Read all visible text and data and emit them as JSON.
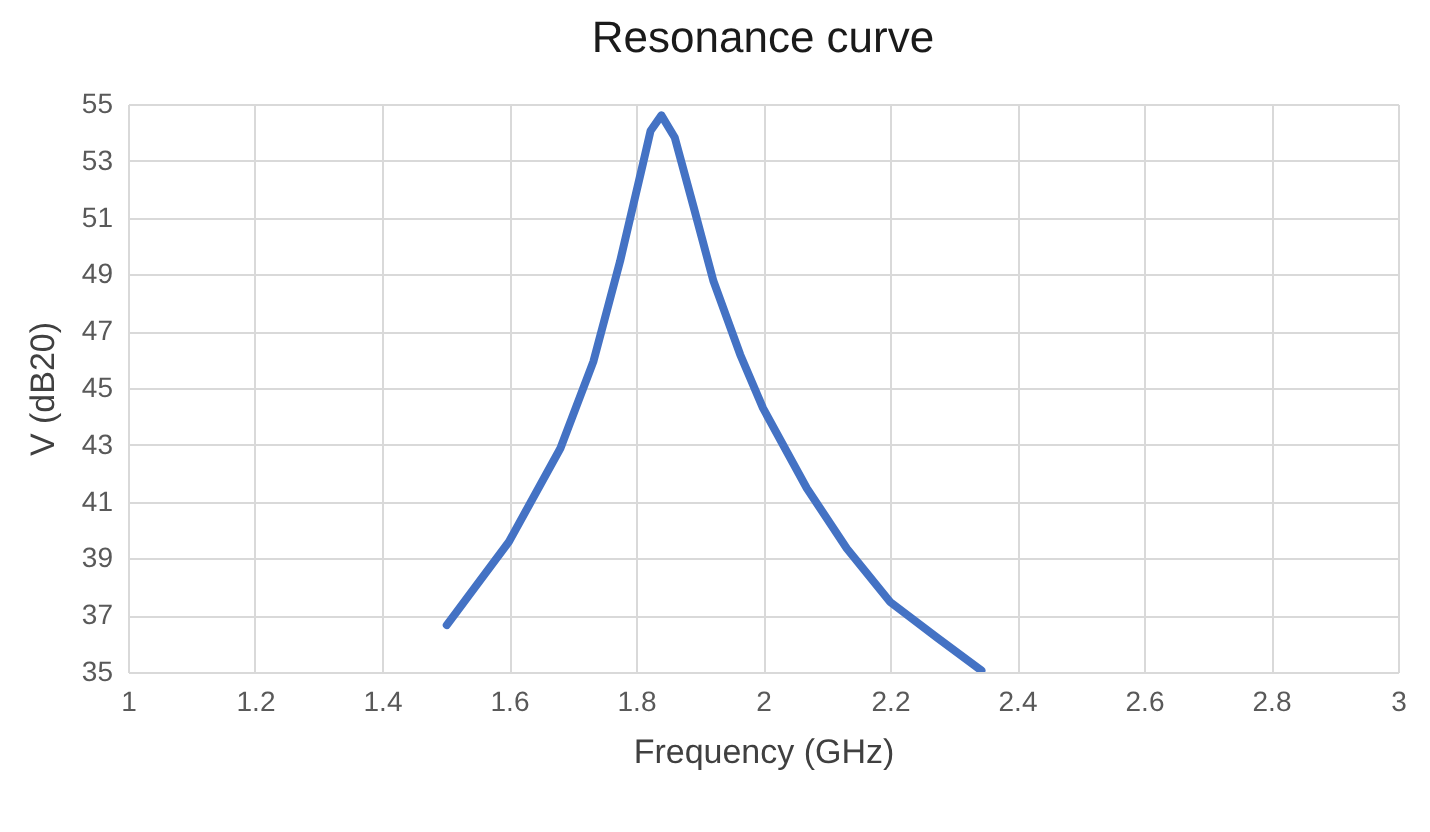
{
  "chart_data": {
    "type": "line",
    "title": "Resonance curve",
    "xlabel": "Frequency (GHz)",
    "ylabel": "V (dB20)",
    "x": [
      1.502,
      1.6,
      1.681,
      1.733,
      1.775,
      1.812,
      1.823,
      1.84,
      1.861,
      1.891,
      1.922,
      1.964,
      2.0,
      2.069,
      2.132,
      2.2,
      2.276,
      2.344
    ],
    "series": [
      {
        "color": "#4472c4",
        "values": [
          36.65,
          39.59,
          42.88,
          45.94,
          49.47,
          53.0,
          54.06,
          54.6,
          53.82,
          51.35,
          48.76,
          46.18,
          44.29,
          41.47,
          39.35,
          37.47,
          36.18,
          35.05
        ]
      }
    ],
    "xlim": [
      1,
      3
    ],
    "xticks": [
      1,
      1.2,
      1.4,
      1.6,
      1.8,
      2,
      2.2,
      2.4,
      2.6,
      2.8,
      3
    ],
    "ylim": [
      35,
      55
    ],
    "yticks": [
      35,
      37,
      39,
      41,
      43,
      45,
      47,
      49,
      51,
      53,
      55
    ],
    "grid": true,
    "marker": "none",
    "line_style": "solid"
  }
}
